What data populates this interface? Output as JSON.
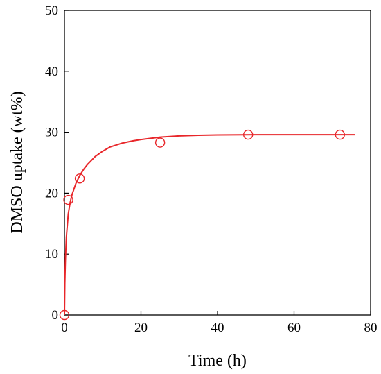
{
  "chart_data": {
    "type": "scatter",
    "title": "",
    "xlabel": "Time (h)",
    "ylabel": "DMSO uptake (wt%)",
    "xlim": [
      0,
      80
    ],
    "ylim": [
      0,
      50
    ],
    "xticks": [
      0,
      20,
      40,
      60,
      80
    ],
    "yticks": [
      0,
      10,
      20,
      30,
      40,
      50
    ],
    "grid": false,
    "legend": "none",
    "series": [
      {
        "kind": "scatter",
        "marker": "open-circle",
        "color": "#e8262a",
        "x": [
          0,
          1,
          4,
          25,
          48,
          72
        ],
        "y": [
          0,
          18.9,
          22.4,
          28.3,
          29.6,
          29.6
        ]
      },
      {
        "kind": "line",
        "color": "#e8262a",
        "x": [
          0,
          0.1,
          0.25,
          0.5,
          1,
          1.5,
          2,
          3,
          4,
          5,
          6,
          8,
          10,
          12,
          15,
          18,
          20,
          25,
          30,
          35,
          40,
          50,
          60,
          70,
          76
        ],
        "y": [
          0,
          5.2,
          9.0,
          12.8,
          16.6,
          18.5,
          19.8,
          21.6,
          22.9,
          23.9,
          24.7,
          26.0,
          26.9,
          27.6,
          28.2,
          28.6,
          28.8,
          29.2,
          29.4,
          29.5,
          29.55,
          29.6,
          29.6,
          29.6,
          29.6
        ]
      }
    ]
  }
}
